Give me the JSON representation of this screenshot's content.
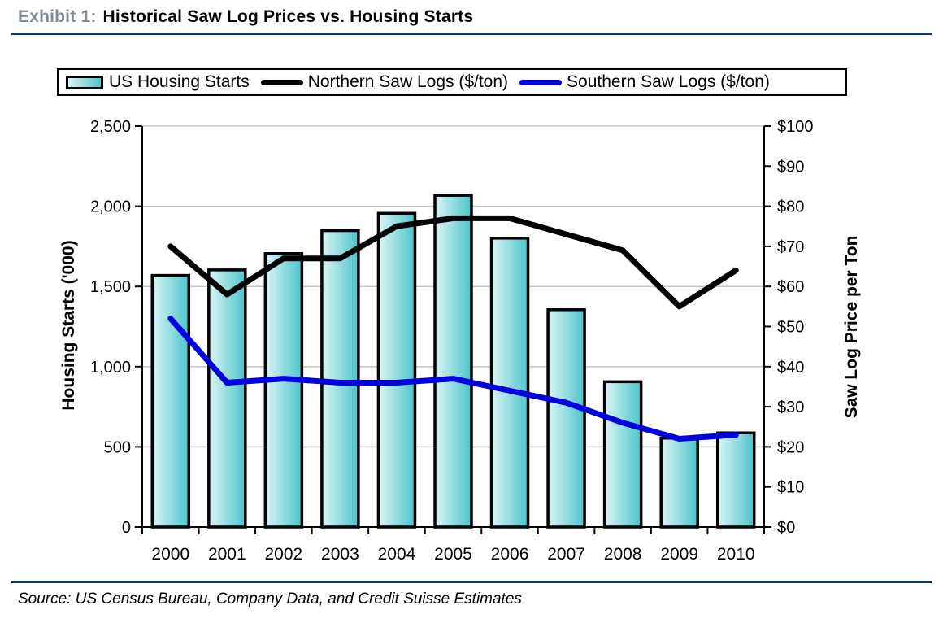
{
  "header": {
    "exhibit_label": "Exhibit 1:",
    "title": "Historical Saw Log Prices vs. Housing Starts"
  },
  "legend": {
    "items": [
      {
        "label": "US Housing Starts",
        "swatch": "bar-swatch"
      },
      {
        "label": "Northern Saw Logs ($/ton)",
        "swatch": "black-line-swatch"
      },
      {
        "label": "Southern Saw Logs ($/ton)",
        "swatch": "blue-line-swatch"
      }
    ]
  },
  "chart_data": {
    "type": "bar",
    "subtype": "combo-bar-line",
    "categories": [
      "2000",
      "2001",
      "2002",
      "2003",
      "2004",
      "2005",
      "2006",
      "2007",
      "2008",
      "2009",
      "2010"
    ],
    "series": [
      {
        "name": "US Housing Starts",
        "type": "bar",
        "axis": "left",
        "values": [
          1569,
          1603,
          1705,
          1848,
          1956,
          2068,
          1801,
          1355,
          906,
          554,
          587
        ]
      },
      {
        "name": "Northern Saw Logs ($/ton)",
        "type": "line",
        "axis": "right",
        "color": "#000000",
        "values": [
          70,
          58,
          67,
          67,
          75,
          77,
          77,
          73,
          69,
          55,
          64
        ]
      },
      {
        "name": "Southern Saw Logs ($/ton)",
        "type": "line",
        "axis": "right",
        "color": "#0000e0",
        "values": [
          52,
          36,
          37,
          36,
          36,
          37,
          34,
          31,
          26,
          22,
          23
        ]
      }
    ],
    "left_axis": {
      "title": "Housing Starts ('000)",
      "min": 0,
      "max": 2500,
      "tick_step": 500,
      "tick_labels": [
        "0",
        "500",
        "1,000",
        "1,500",
        "2,000",
        "2,500"
      ]
    },
    "right_axis": {
      "title": "Saw Log Price per Ton",
      "min": 0,
      "max": 100,
      "tick_step": 10,
      "tick_labels": [
        "$0",
        "$10",
        "$20",
        "$30",
        "$40",
        "$50",
        "$60",
        "$70",
        "$80",
        "$90",
        "$100"
      ]
    },
    "grid": {
      "horizontal": true,
      "at_left_values": [
        500,
        1000,
        1500,
        2000,
        2500
      ]
    },
    "legend_position": "top"
  },
  "colors": {
    "bar_fill_light": "#dbf5f6",
    "bar_fill_dark": "#4cc4cb",
    "bar_border": "#000000",
    "northern_line": "#000000",
    "southern_line": "#0000e0",
    "gridline": "#c6c6c6",
    "rule_navy": "#17375e",
    "exhibit_label_gray": "#808b94"
  },
  "footer": {
    "source": "Source: US Census Bureau, Company Data, and Credit Suisse Estimates"
  }
}
